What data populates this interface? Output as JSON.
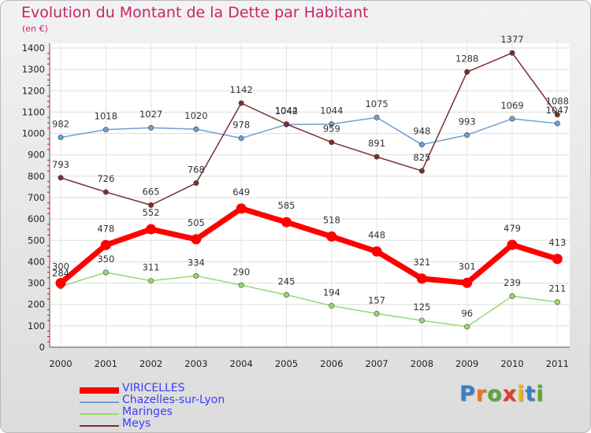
{
  "title": "Evolution du Montant de la Dette par Habitant",
  "unit": "(en €)",
  "logo": {
    "letters": [
      "P",
      "r",
      "o",
      "x",
      "i",
      "t",
      "i"
    ],
    "colors": [
      "#3a7fc8",
      "#e8762a",
      "#5aa83a",
      "#e23b2e",
      "#f0b400",
      "#3a7fc8",
      "#5aa83a"
    ]
  },
  "chart_data": {
    "type": "line",
    "title": "Evolution du Montant de la Dette par Habitant",
    "ylabel": "(en €)",
    "x": [
      "2000",
      "2001",
      "2002",
      "2003",
      "2004",
      "2005",
      "2006",
      "2007",
      "2008",
      "2009",
      "2010",
      "2011"
    ],
    "ylim": [
      0,
      1400
    ],
    "yticks": [
      0,
      100,
      200,
      300,
      400,
      500,
      600,
      700,
      800,
      900,
      1000,
      1100,
      1200,
      1300,
      1400
    ],
    "grid": true,
    "legend": "bottom-left",
    "series": [
      {
        "name": "VIRICELLES",
        "color": "#ff0000",
        "values": [
          300,
          478,
          552,
          505,
          649,
          585,
          518,
          448,
          321,
          301,
          479,
          413
        ]
      },
      {
        "name": "Chazelles-sur-Lyon",
        "color": "#6ca0d0",
        "values": [
          982,
          1018,
          1027,
          1020,
          978,
          1042,
          1044,
          1075,
          948,
          993,
          1069,
          1047
        ]
      },
      {
        "name": "Maringes",
        "color": "#9ad86e",
        "values": [
          284,
          350,
          311,
          334,
          290,
          245,
          194,
          157,
          125,
          96,
          239,
          211
        ]
      },
      {
        "name": "Meys",
        "color": "#7a2f2f",
        "values": [
          793,
          726,
          665,
          768,
          1142,
          1044,
          959,
          891,
          825,
          1288,
          1377,
          1088
        ]
      }
    ]
  }
}
